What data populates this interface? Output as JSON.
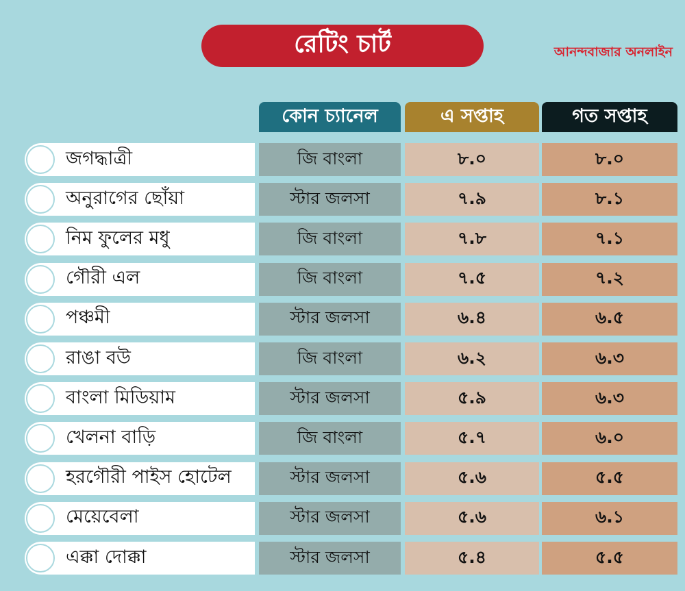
{
  "title": "রেটিং চার্ট",
  "brand": "আনন্দবাজার অনলাইন",
  "headers": {
    "channel": "কোন চ্যানেল",
    "this_week": "এ সপ্তাহ",
    "last_week": "গত সপ্তাহ"
  },
  "chart_data": {
    "type": "table",
    "title": "রেটিং চার্ট",
    "columns": [
      "কোন চ্যানেল",
      "এ সপ্তাহ",
      "গত সপ্তাহ"
    ],
    "rows": [
      {
        "name": "জগদ্ধাত্রী",
        "channel": "জি বাংলা",
        "this_week": "৮.০",
        "last_week": "৮.০"
      },
      {
        "name": "অনুরাগের ছোঁয়া",
        "channel": "স্টার জলসা",
        "this_week": "৭.৯",
        "last_week": "৮.১"
      },
      {
        "name": "নিম ফুলের মধু",
        "channel": "জি বাংলা",
        "this_week": "৭.৮",
        "last_week": "৭.১"
      },
      {
        "name": "গৌরী এল",
        "channel": "জি বাংলা",
        "this_week": "৭.৫",
        "last_week": "৭.২"
      },
      {
        "name": "পঞ্চমী",
        "channel": "স্টার জলসা",
        "this_week": "৬.৪",
        "last_week": "৬.৫"
      },
      {
        "name": "রাঙা বউ",
        "channel": "জি বাংলা",
        "this_week": "৬.২",
        "last_week": "৬.৩"
      },
      {
        "name": "বাংলা মিডিয়াম",
        "channel": "স্টার জলসা",
        "this_week": "৫.৯",
        "last_week": "৬.৩"
      },
      {
        "name": "খেলনা বাড়ি",
        "channel": "জি বাংলা",
        "this_week": "৫.৭",
        "last_week": "৬.০"
      },
      {
        "name": "হরগৌরী পাইস হোটেল",
        "channel": "স্টার জলসা",
        "this_week": "৫.৬",
        "last_week": "৫.৫"
      },
      {
        "name": "মেয়েবেলা",
        "channel": "স্টার জলসা",
        "this_week": "৫.৬",
        "last_week": "৬.১"
      },
      {
        "name": "এক্কা দোক্কা",
        "channel": "স্টার জলসা",
        "this_week": "৫.৪",
        "last_week": "৫.৫"
      }
    ]
  }
}
